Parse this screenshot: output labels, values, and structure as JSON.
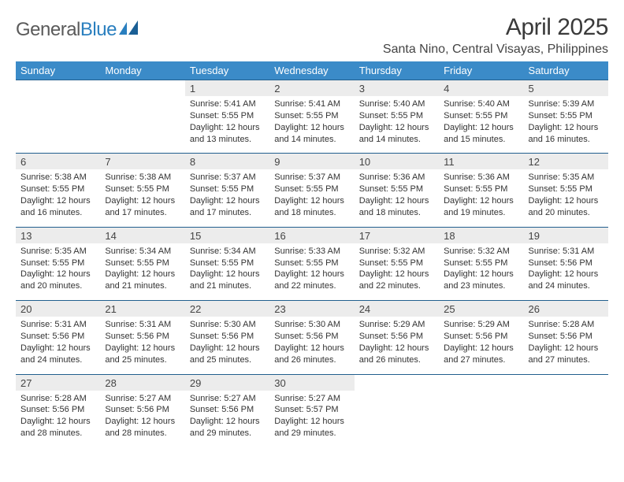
{
  "brand": {
    "part1": "General",
    "part2": "Blue"
  },
  "title": "April 2025",
  "subtitle": "Santa Nino, Central Visayas, Philippines",
  "colors": {
    "header_bg": "#3b8bc8",
    "header_text": "#ffffff",
    "row_border": "#215f8e",
    "num_row_bg": "#ececec",
    "body_text": "#333333",
    "logo_dark": "#5a5a5a",
    "logo_blue": "#2a7fbf"
  },
  "day_headers": [
    "Sunday",
    "Monday",
    "Tuesday",
    "Wednesday",
    "Thursday",
    "Friday",
    "Saturday"
  ],
  "weeks": [
    [
      null,
      null,
      {
        "n": "1",
        "sr": "Sunrise: 5:41 AM",
        "ss": "Sunset: 5:55 PM",
        "dl1": "Daylight: 12 hours",
        "dl2": "and 13 minutes."
      },
      {
        "n": "2",
        "sr": "Sunrise: 5:41 AM",
        "ss": "Sunset: 5:55 PM",
        "dl1": "Daylight: 12 hours",
        "dl2": "and 14 minutes."
      },
      {
        "n": "3",
        "sr": "Sunrise: 5:40 AM",
        "ss": "Sunset: 5:55 PM",
        "dl1": "Daylight: 12 hours",
        "dl2": "and 14 minutes."
      },
      {
        "n": "4",
        "sr": "Sunrise: 5:40 AM",
        "ss": "Sunset: 5:55 PM",
        "dl1": "Daylight: 12 hours",
        "dl2": "and 15 minutes."
      },
      {
        "n": "5",
        "sr": "Sunrise: 5:39 AM",
        "ss": "Sunset: 5:55 PM",
        "dl1": "Daylight: 12 hours",
        "dl2": "and 16 minutes."
      }
    ],
    [
      {
        "n": "6",
        "sr": "Sunrise: 5:38 AM",
        "ss": "Sunset: 5:55 PM",
        "dl1": "Daylight: 12 hours",
        "dl2": "and 16 minutes."
      },
      {
        "n": "7",
        "sr": "Sunrise: 5:38 AM",
        "ss": "Sunset: 5:55 PM",
        "dl1": "Daylight: 12 hours",
        "dl2": "and 17 minutes."
      },
      {
        "n": "8",
        "sr": "Sunrise: 5:37 AM",
        "ss": "Sunset: 5:55 PM",
        "dl1": "Daylight: 12 hours",
        "dl2": "and 17 minutes."
      },
      {
        "n": "9",
        "sr": "Sunrise: 5:37 AM",
        "ss": "Sunset: 5:55 PM",
        "dl1": "Daylight: 12 hours",
        "dl2": "and 18 minutes."
      },
      {
        "n": "10",
        "sr": "Sunrise: 5:36 AM",
        "ss": "Sunset: 5:55 PM",
        "dl1": "Daylight: 12 hours",
        "dl2": "and 18 minutes."
      },
      {
        "n": "11",
        "sr": "Sunrise: 5:36 AM",
        "ss": "Sunset: 5:55 PM",
        "dl1": "Daylight: 12 hours",
        "dl2": "and 19 minutes."
      },
      {
        "n": "12",
        "sr": "Sunrise: 5:35 AM",
        "ss": "Sunset: 5:55 PM",
        "dl1": "Daylight: 12 hours",
        "dl2": "and 20 minutes."
      }
    ],
    [
      {
        "n": "13",
        "sr": "Sunrise: 5:35 AM",
        "ss": "Sunset: 5:55 PM",
        "dl1": "Daylight: 12 hours",
        "dl2": "and 20 minutes."
      },
      {
        "n": "14",
        "sr": "Sunrise: 5:34 AM",
        "ss": "Sunset: 5:55 PM",
        "dl1": "Daylight: 12 hours",
        "dl2": "and 21 minutes."
      },
      {
        "n": "15",
        "sr": "Sunrise: 5:34 AM",
        "ss": "Sunset: 5:55 PM",
        "dl1": "Daylight: 12 hours",
        "dl2": "and 21 minutes."
      },
      {
        "n": "16",
        "sr": "Sunrise: 5:33 AM",
        "ss": "Sunset: 5:55 PM",
        "dl1": "Daylight: 12 hours",
        "dl2": "and 22 minutes."
      },
      {
        "n": "17",
        "sr": "Sunrise: 5:32 AM",
        "ss": "Sunset: 5:55 PM",
        "dl1": "Daylight: 12 hours",
        "dl2": "and 22 minutes."
      },
      {
        "n": "18",
        "sr": "Sunrise: 5:32 AM",
        "ss": "Sunset: 5:55 PM",
        "dl1": "Daylight: 12 hours",
        "dl2": "and 23 minutes."
      },
      {
        "n": "19",
        "sr": "Sunrise: 5:31 AM",
        "ss": "Sunset: 5:56 PM",
        "dl1": "Daylight: 12 hours",
        "dl2": "and 24 minutes."
      }
    ],
    [
      {
        "n": "20",
        "sr": "Sunrise: 5:31 AM",
        "ss": "Sunset: 5:56 PM",
        "dl1": "Daylight: 12 hours",
        "dl2": "and 24 minutes."
      },
      {
        "n": "21",
        "sr": "Sunrise: 5:31 AM",
        "ss": "Sunset: 5:56 PM",
        "dl1": "Daylight: 12 hours",
        "dl2": "and 25 minutes."
      },
      {
        "n": "22",
        "sr": "Sunrise: 5:30 AM",
        "ss": "Sunset: 5:56 PM",
        "dl1": "Daylight: 12 hours",
        "dl2": "and 25 minutes."
      },
      {
        "n": "23",
        "sr": "Sunrise: 5:30 AM",
        "ss": "Sunset: 5:56 PM",
        "dl1": "Daylight: 12 hours",
        "dl2": "and 26 minutes."
      },
      {
        "n": "24",
        "sr": "Sunrise: 5:29 AM",
        "ss": "Sunset: 5:56 PM",
        "dl1": "Daylight: 12 hours",
        "dl2": "and 26 minutes."
      },
      {
        "n": "25",
        "sr": "Sunrise: 5:29 AM",
        "ss": "Sunset: 5:56 PM",
        "dl1": "Daylight: 12 hours",
        "dl2": "and 27 minutes."
      },
      {
        "n": "26",
        "sr": "Sunrise: 5:28 AM",
        "ss": "Sunset: 5:56 PM",
        "dl1": "Daylight: 12 hours",
        "dl2": "and 27 minutes."
      }
    ],
    [
      {
        "n": "27",
        "sr": "Sunrise: 5:28 AM",
        "ss": "Sunset: 5:56 PM",
        "dl1": "Daylight: 12 hours",
        "dl2": "and 28 minutes."
      },
      {
        "n": "28",
        "sr": "Sunrise: 5:27 AM",
        "ss": "Sunset: 5:56 PM",
        "dl1": "Daylight: 12 hours",
        "dl2": "and 28 minutes."
      },
      {
        "n": "29",
        "sr": "Sunrise: 5:27 AM",
        "ss": "Sunset: 5:56 PM",
        "dl1": "Daylight: 12 hours",
        "dl2": "and 29 minutes."
      },
      {
        "n": "30",
        "sr": "Sunrise: 5:27 AM",
        "ss": "Sunset: 5:57 PM",
        "dl1": "Daylight: 12 hours",
        "dl2": "and 29 minutes."
      },
      null,
      null,
      null
    ]
  ]
}
